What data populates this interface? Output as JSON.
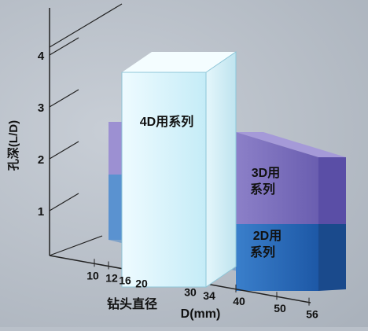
{
  "chart_data": {
    "type": "bar",
    "projection": "3d",
    "ylabel": "孔深(L/D)",
    "xlabel_line1": "钻头直径",
    "xlabel_line2": "D(mm)",
    "y_ticks": [
      "1",
      "2",
      "3",
      "4"
    ],
    "x_ticks": [
      "10",
      "12",
      "16",
      "20",
      "30",
      "34",
      "40",
      "50",
      "56"
    ],
    "series": [
      {
        "name": "2D用系列",
        "name_lines": [
          "2D用",
          "系列"
        ],
        "x_range": [
          12,
          56
        ],
        "depth": 2,
        "color": "#2f6fb8"
      },
      {
        "name": "3D用系列",
        "name_lines": [
          "3D用",
          "系列"
        ],
        "x_range": [
          12,
          56
        ],
        "depth": 3,
        "color": "#8a7ec6"
      },
      {
        "name": "4D用系列",
        "name_lines": [
          "4D用系列"
        ],
        "x_range": [
          16,
          34
        ],
        "depth": 4,
        "color": "#d8f3fb"
      }
    ],
    "ylim": [
      0,
      4.5
    ],
    "grid": false,
    "legend": "none"
  }
}
